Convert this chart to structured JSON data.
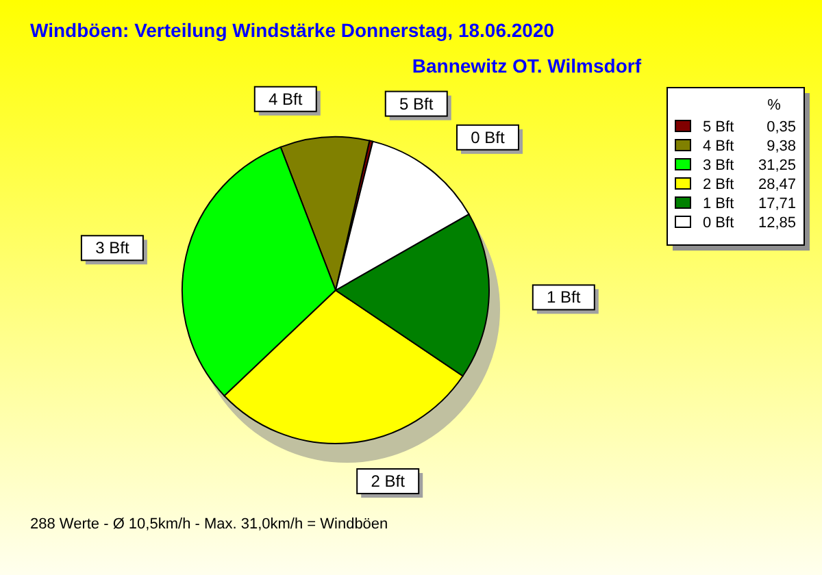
{
  "chart_data": {
    "type": "pie",
    "title": "Windböen: Verteilung Windstärke  Donnerstag, 18.06.2020",
    "subtitle": "Bannewitz OT. Wilmsdorf",
    "categories": [
      "5 Bft",
      "4 Bft",
      "3 Bft",
      "2 Bft",
      "1 Bft",
      "0 Bft"
    ],
    "values": [
      0.35,
      9.38,
      31.25,
      28.47,
      17.71,
      12.85
    ],
    "value_labels": [
      "0,35",
      "9,38",
      "31,25",
      "28,47",
      "17,71",
      "12,85"
    ],
    "colors": [
      "#800000",
      "#808000",
      "#00ff00",
      "#ffff00",
      "#008000",
      "#ffffff"
    ],
    "legend_title": "%",
    "legend": "top right",
    "annotations": [
      "288 Werte   -   Ø 10,5km/h  -  Max. 31,0km/h = Windböen"
    ]
  }
}
